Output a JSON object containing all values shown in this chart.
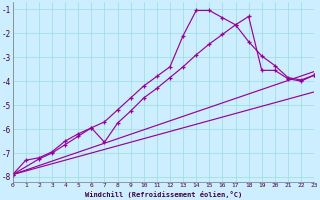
{
  "xlabel": "Windchill (Refroidissement éolien,°C)",
  "background_color": "#cceeff",
  "grid_color": "#99dddd",
  "line_color": "#990099",
  "xlim": [
    0,
    23
  ],
  "ylim": [
    -8.2,
    -0.7
  ],
  "xtick_vals": [
    0,
    1,
    2,
    3,
    4,
    5,
    6,
    7,
    8,
    9,
    10,
    11,
    12,
    13,
    14,
    15,
    16,
    17,
    18,
    19,
    20,
    21,
    22,
    23
  ],
  "ytick_vals": [
    -8,
    -7,
    -6,
    -5,
    -4,
    -3,
    -2,
    -1
  ],
  "curve1_x": [
    0,
    1,
    2,
    3,
    4,
    5,
    6,
    7,
    8,
    9,
    10,
    11,
    12,
    13,
    14,
    15,
    16,
    17,
    18,
    19,
    20,
    21,
    22,
    23
  ],
  "curve1_y": [
    -7.9,
    -7.3,
    -7.2,
    -6.95,
    -6.5,
    -6.2,
    -5.95,
    -5.7,
    -5.2,
    -4.7,
    -4.2,
    -3.8,
    -3.4,
    -2.1,
    -1.05,
    -1.05,
    -1.35,
    -1.65,
    -2.35,
    -2.95,
    -3.35,
    -3.85,
    -3.95,
    -3.75
  ],
  "curve2_x": [
    0,
    2,
    3,
    4,
    5,
    6,
    7,
    8,
    9,
    10,
    11,
    12,
    13,
    14,
    15,
    16,
    17,
    18,
    19,
    20,
    21,
    22,
    23
  ],
  "curve2_y": [
    -7.9,
    -7.25,
    -7.0,
    -6.65,
    -6.3,
    -5.95,
    -6.55,
    -5.75,
    -5.25,
    -4.7,
    -4.3,
    -3.85,
    -3.4,
    -2.9,
    -2.45,
    -2.05,
    -1.65,
    -1.3,
    -3.55,
    -3.55,
    -3.9,
    -4.0,
    -3.75
  ],
  "line3_x": [
    0,
    23
  ],
  "line3_y": [
    -7.9,
    -3.6
  ],
  "line4_x": [
    0,
    23
  ],
  "line4_y": [
    -7.9,
    -4.45
  ]
}
